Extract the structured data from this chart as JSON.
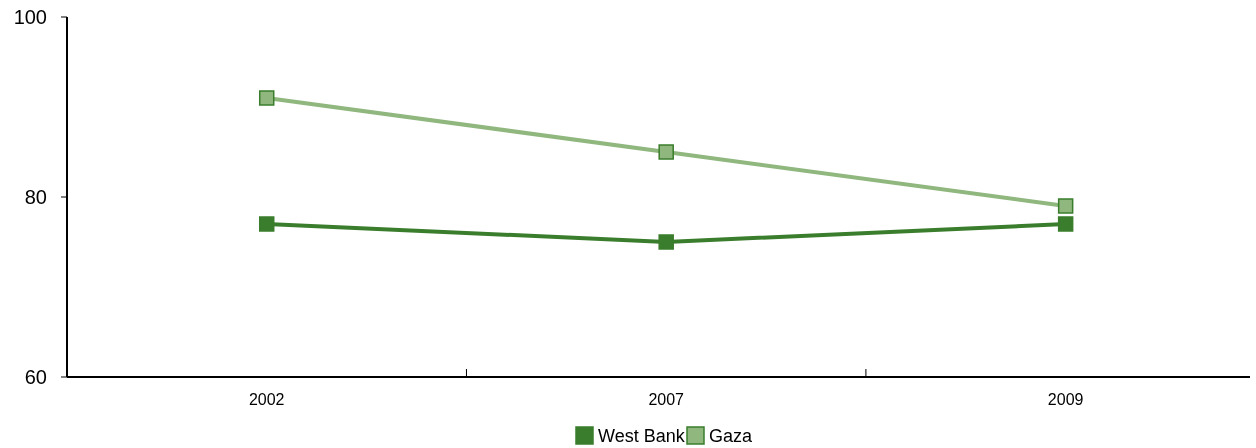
{
  "chart_data": {
    "type": "line",
    "categories": [
      "2002",
      "2007",
      "2009"
    ],
    "series": [
      {
        "name": "West Bank",
        "color": "#3a7d2c",
        "values": [
          77,
          75,
          77
        ]
      },
      {
        "name": "Gaza",
        "color": "#8fb77e",
        "values": [
          91,
          85,
          79
        ]
      }
    ],
    "ylim": [
      60,
      100
    ],
    "yticks": [
      60,
      80,
      100
    ],
    "grid": false,
    "legend": "bottom",
    "marker": "square",
    "line_style": "solid"
  }
}
